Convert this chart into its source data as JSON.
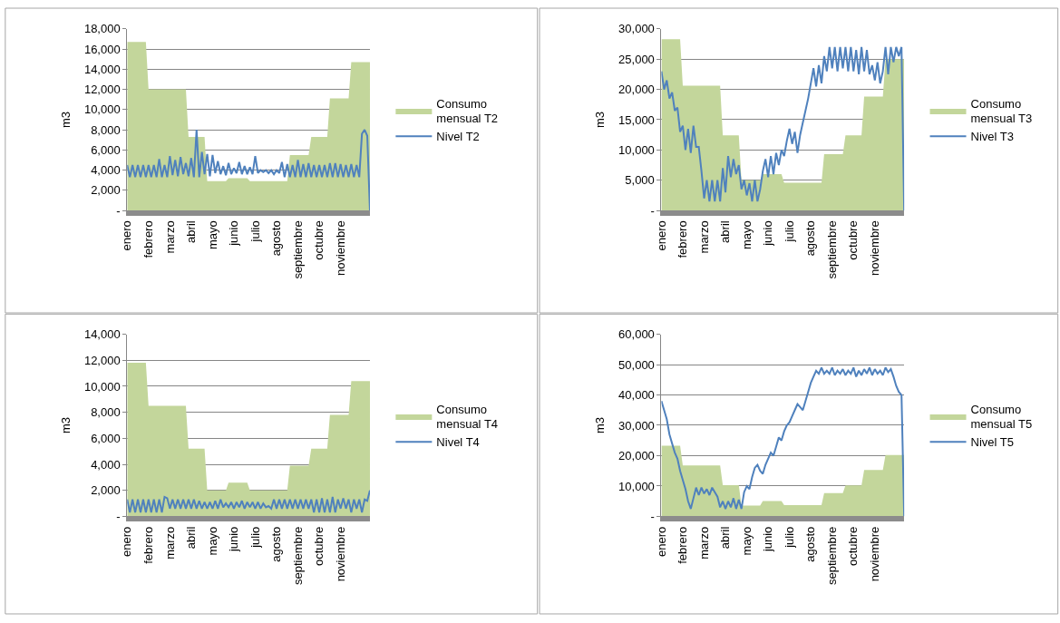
{
  "chart_data": [
    {
      "type": "area",
      "ylabel": "m3",
      "ylim": [
        0,
        18000
      ],
      "yticks": [
        {
          "value": 0,
          "label": "-"
        },
        {
          "value": 2000,
          "label": "2,000"
        },
        {
          "value": 4000,
          "label": "4,000"
        },
        {
          "value": 6000,
          "label": "6,000"
        },
        {
          "value": 8000,
          "label": "8,000"
        },
        {
          "value": 10000,
          "label": "10,000"
        },
        {
          "value": 12000,
          "label": "12,000"
        },
        {
          "value": 14000,
          "label": "14,000"
        },
        {
          "value": 16000,
          "label": "16,000"
        },
        {
          "value": 18000,
          "label": "18,000"
        }
      ],
      "grid": "y",
      "legend": "right",
      "categories": [
        "enero",
        null,
        null,
        null,
        null,
        null,
        null,
        null,
        "febrero",
        null,
        null,
        null,
        null,
        null,
        null,
        null,
        "marzo",
        null,
        null,
        null,
        null,
        null,
        null,
        null,
        "abril",
        null,
        null,
        null,
        null,
        null,
        null,
        null,
        "mayo",
        null,
        null,
        null,
        null,
        null,
        null,
        null,
        "junio",
        null,
        null,
        null,
        null,
        null,
        null,
        null,
        "julio",
        null,
        null,
        null,
        null,
        null,
        null,
        null,
        "agosto",
        null,
        null,
        null,
        null,
        null,
        null,
        null,
        "septiembre",
        null,
        null,
        null,
        null,
        null,
        null,
        null,
        "octubre",
        null,
        null,
        null,
        null,
        null,
        null,
        null,
        "noviembre",
        null,
        null,
        null,
        null,
        null,
        null,
        null,
        null,
        null,
        null,
        null
      ],
      "series": [
        {
          "name": "Consumo mensual T2",
          "color": "#c3d69b",
          "values": [
            16700,
            16700,
            16700,
            16700,
            16700,
            16700,
            16700,
            16700,
            12000,
            12000,
            12000,
            12000,
            12000,
            12000,
            12000,
            12000,
            12000,
            12000,
            12000,
            12000,
            12000,
            12000,
            12000,
            7300,
            7300,
            7300,
            7300,
            7300,
            7300,
            7300,
            2900,
            2900,
            2900,
            2900,
            2900,
            2900,
            2900,
            2900,
            3200,
            3200,
            3200,
            3200,
            3200,
            3200,
            3200,
            3200,
            2900,
            2900,
            2900,
            2900,
            2900,
            2900,
            2900,
            2900,
            2900,
            2900,
            2900,
            2900,
            2900,
            2900,
            2900,
            5500,
            5500,
            5500,
            5500,
            5500,
            5500,
            5500,
            5500,
            7300,
            7300,
            7300,
            7300,
            7300,
            7300,
            7300,
            11100,
            11100,
            11100,
            11100,
            11100,
            11100,
            11100,
            11100,
            14700,
            14700,
            14700,
            14700,
            14700,
            14700,
            14700,
            14700
          ]
        },
        {
          "name": "Nivel T2",
          "type": "line",
          "color": "#4f81bd",
          "values": [
            4500,
            3300,
            4500,
            3300,
            4500,
            3300,
            4500,
            3300,
            4500,
            3300,
            4500,
            3300,
            5100,
            3300,
            4500,
            3300,
            5400,
            3500,
            5000,
            3400,
            5300,
            3600,
            4700,
            3400,
            5200,
            3300,
            8000,
            3300,
            5800,
            3600,
            5600,
            3400,
            5500,
            3700,
            4900,
            3600,
            4400,
            3500,
            4700,
            3600,
            4200,
            3700,
            4800,
            3600,
            4400,
            3600,
            4300,
            3600,
            5400,
            3700,
            4000,
            3800,
            4000,
            3700,
            4000,
            3600,
            4000,
            3700,
            4800,
            3300,
            4600,
            3300,
            4500,
            3300,
            5000,
            3300,
            4600,
            3300,
            4700,
            3300,
            4500,
            3300,
            4500,
            3300,
            4500,
            3300,
            4700,
            3300,
            4700,
            3300,
            4600,
            3300,
            4500,
            3300,
            4600,
            3300,
            4500,
            3300,
            7600,
            8000,
            7400,
            0
          ]
        }
      ]
    },
    {
      "type": "area",
      "ylabel": "m3",
      "ylim": [
        0,
        30000
      ],
      "yticks": [
        {
          "value": 0,
          "label": "-"
        },
        {
          "value": 5000,
          "label": "5,000"
        },
        {
          "value": 10000,
          "label": "10,000"
        },
        {
          "value": 15000,
          "label": "15,000"
        },
        {
          "value": 20000,
          "label": "20,000"
        },
        {
          "value": 25000,
          "label": "25,000"
        },
        {
          "value": 30000,
          "label": "30,000"
        }
      ],
      "grid": "y",
      "legend": "right",
      "categories": [
        "enero",
        null,
        null,
        null,
        null,
        null,
        null,
        null,
        "febrero",
        null,
        null,
        null,
        null,
        null,
        null,
        null,
        "marzo",
        null,
        null,
        null,
        null,
        null,
        null,
        null,
        "abril",
        null,
        null,
        null,
        null,
        null,
        null,
        null,
        "mayo",
        null,
        null,
        null,
        null,
        null,
        null,
        null,
        "junio",
        null,
        null,
        null,
        null,
        null,
        null,
        null,
        "julio",
        null,
        null,
        null,
        null,
        null,
        null,
        null,
        "agosto",
        null,
        null,
        null,
        null,
        null,
        null,
        null,
        "septiembre",
        null,
        null,
        null,
        null,
        null,
        null,
        null,
        "octubre",
        null,
        null,
        null,
        null,
        null,
        null,
        null,
        "noviembre",
        null,
        null,
        null,
        null,
        null,
        null,
        null,
        null,
        null,
        null,
        null
      ],
      "series": [
        {
          "name": "Consumo mensual T3",
          "color": "#c3d69b",
          "values": [
            28300,
            28300,
            28300,
            28300,
            28300,
            28300,
            28300,
            28300,
            20600,
            20600,
            20600,
            20600,
            20600,
            20600,
            20600,
            20600,
            20600,
            20600,
            20600,
            20600,
            20600,
            20600,
            20600,
            12400,
            12400,
            12400,
            12400,
            12400,
            12400,
            12400,
            5000,
            5000,
            5000,
            5000,
            5000,
            5000,
            5000,
            5000,
            6000,
            6000,
            6000,
            6000,
            6000,
            6000,
            6000,
            6000,
            4600,
            4600,
            4600,
            4600,
            4600,
            4600,
            4600,
            4600,
            4600,
            4600,
            4600,
            4600,
            4600,
            4600,
            4600,
            9300,
            9300,
            9300,
            9300,
            9300,
            9300,
            9300,
            9300,
            12400,
            12400,
            12400,
            12400,
            12400,
            12400,
            12400,
            18800,
            18800,
            18800,
            18800,
            18800,
            18800,
            18800,
            18800,
            25000,
            25000,
            25000,
            25000,
            25000,
            25000,
            25000,
            25000
          ]
        },
        {
          "name": "Nivel T3",
          "type": "line",
          "color": "#4f81bd",
          "values": [
            23000,
            20000,
            21500,
            18500,
            19500,
            16500,
            17000,
            13000,
            14000,
            10000,
            13500,
            9500,
            14000,
            10500,
            10500,
            6500,
            2000,
            5000,
            1500,
            5000,
            1500,
            5000,
            1500,
            7000,
            3000,
            9000,
            5500,
            8500,
            6000,
            7500,
            3500,
            5000,
            2500,
            4500,
            1500,
            5000,
            1500,
            3500,
            6500,
            8500,
            5500,
            9000,
            6000,
            9500,
            7500,
            10000,
            9000,
            11500,
            13500,
            11000,
            13000,
            9500,
            12500,
            14500,
            16500,
            18500,
            21000,
            23500,
            20500,
            24000,
            21000,
            25500,
            23000,
            27000,
            23500,
            27000,
            23000,
            27000,
            23500,
            27000,
            23000,
            27000,
            23000,
            26500,
            22500,
            27000,
            23000,
            26500,
            22500,
            24000,
            21500,
            24500,
            21000,
            23000,
            27000,
            22500,
            27000,
            24500,
            27000,
            25500,
            27000,
            0
          ]
        }
      ]
    },
    {
      "type": "area",
      "ylabel": "m3",
      "ylim": [
        0,
        14000
      ],
      "yticks": [
        {
          "value": 0,
          "label": "-"
        },
        {
          "value": 2000,
          "label": "2,000"
        },
        {
          "value": 4000,
          "label": "4,000"
        },
        {
          "value": 6000,
          "label": "6,000"
        },
        {
          "value": 8000,
          "label": "8,000"
        },
        {
          "value": 10000,
          "label": "10,000"
        },
        {
          "value": 12000,
          "label": "12,000"
        },
        {
          "value": 14000,
          "label": "14,000"
        }
      ],
      "grid": "y",
      "legend": "right",
      "categories": [
        "enero",
        null,
        null,
        null,
        null,
        null,
        null,
        null,
        "febrero",
        null,
        null,
        null,
        null,
        null,
        null,
        null,
        "marzo",
        null,
        null,
        null,
        null,
        null,
        null,
        null,
        "abril",
        null,
        null,
        null,
        null,
        null,
        null,
        null,
        "mayo",
        null,
        null,
        null,
        null,
        null,
        null,
        null,
        "junio",
        null,
        null,
        null,
        null,
        null,
        null,
        null,
        "julio",
        null,
        null,
        null,
        null,
        null,
        null,
        null,
        "agosto",
        null,
        null,
        null,
        null,
        null,
        null,
        null,
        "septiembre",
        null,
        null,
        null,
        null,
        null,
        null,
        null,
        "octubre",
        null,
        null,
        null,
        null,
        null,
        null,
        null,
        "noviembre",
        null,
        null,
        null,
        null,
        null,
        null,
        null,
        null,
        null,
        null,
        null
      ],
      "series": [
        {
          "name": "Consumo mensual T4",
          "color": "#c3d69b",
          "values": [
            11800,
            11800,
            11800,
            11800,
            11800,
            11800,
            11800,
            11800,
            8500,
            8500,
            8500,
            8500,
            8500,
            8500,
            8500,
            8500,
            8500,
            8500,
            8500,
            8500,
            8500,
            8500,
            8500,
            5200,
            5200,
            5200,
            5200,
            5200,
            5200,
            5200,
            2000,
            2000,
            2000,
            2000,
            2000,
            2000,
            2000,
            2000,
            2600,
            2600,
            2600,
            2600,
            2600,
            2600,
            2600,
            2600,
            2000,
            2000,
            2000,
            2000,
            2000,
            2000,
            2000,
            2000,
            2000,
            2000,
            2000,
            2000,
            2000,
            2000,
            2000,
            3900,
            3900,
            3900,
            3900,
            3900,
            3900,
            3900,
            3900,
            5200,
            5200,
            5200,
            5200,
            5200,
            5200,
            5200,
            7800,
            7800,
            7800,
            7800,
            7800,
            7800,
            7800,
            7800,
            10400,
            10400,
            10400,
            10400,
            10400,
            10400,
            10400,
            10400
          ]
        },
        {
          "name": "Nivel T4",
          "type": "line",
          "color": "#4f81bd",
          "values": [
            1300,
            300,
            1300,
            300,
            1300,
            300,
            1300,
            300,
            1300,
            300,
            1300,
            300,
            1300,
            300,
            1500,
            1400,
            600,
            1300,
            600,
            1300,
            600,
            1300,
            600,
            1300,
            600,
            1300,
            600,
            1200,
            600,
            1100,
            600,
            1100,
            600,
            1200,
            600,
            1300,
            700,
            1000,
            700,
            1100,
            600,
            1100,
            700,
            1200,
            600,
            1100,
            700,
            1100,
            600,
            1100,
            600,
            1000,
            700,
            800,
            600,
            1300,
            600,
            1300,
            600,
            1300,
            600,
            1300,
            600,
            1300,
            600,
            1300,
            600,
            1300,
            600,
            1300,
            300,
            1300,
            300,
            1400,
            300,
            1300,
            300,
            1500,
            300,
            1300,
            600,
            1400,
            600,
            1300,
            300,
            1300,
            600,
            1300,
            300,
            1300,
            1200,
            2000
          ]
        }
      ]
    },
    {
      "type": "area",
      "ylabel": "m3",
      "ylim": [
        0,
        60000
      ],
      "yticks": [
        {
          "value": 0,
          "label": "-"
        },
        {
          "value": 10000,
          "label": "10,000"
        },
        {
          "value": 20000,
          "label": "20,000"
        },
        {
          "value": 30000,
          "label": "30,000"
        },
        {
          "value": 40000,
          "label": "40,000"
        },
        {
          "value": 50000,
          "label": "50,000"
        },
        {
          "value": 60000,
          "label": "60,000"
        }
      ],
      "grid": "y",
      "legend": "right",
      "categories": [
        "enero",
        null,
        null,
        null,
        null,
        null,
        null,
        null,
        "febrero",
        null,
        null,
        null,
        null,
        null,
        null,
        null,
        "marzo",
        null,
        null,
        null,
        null,
        null,
        null,
        null,
        "abril",
        null,
        null,
        null,
        null,
        null,
        null,
        null,
        "mayo",
        null,
        null,
        null,
        null,
        null,
        null,
        null,
        "junio",
        null,
        null,
        null,
        null,
        null,
        null,
        null,
        "julio",
        null,
        null,
        null,
        null,
        null,
        null,
        null,
        "agosto",
        null,
        null,
        null,
        null,
        null,
        null,
        null,
        "septiembre",
        null,
        null,
        null,
        null,
        null,
        null,
        null,
        "octubre",
        null,
        null,
        null,
        null,
        null,
        null,
        null,
        "noviembre",
        null,
        null,
        null,
        null,
        null,
        null,
        null,
        null,
        null,
        null,
        null
      ],
      "series": [
        {
          "name": "Consumo mensual T5",
          "color": "#c3d69b",
          "values": [
            23300,
            23300,
            23300,
            23300,
            23300,
            23300,
            23300,
            23300,
            16800,
            16800,
            16800,
            16800,
            16800,
            16800,
            16800,
            16800,
            16800,
            16800,
            16800,
            16800,
            16800,
            16800,
            16800,
            10300,
            10300,
            10300,
            10300,
            10300,
            10300,
            10300,
            3600,
            3600,
            3600,
            3600,
            3600,
            3600,
            3600,
            3600,
            5100,
            5100,
            5100,
            5100,
            5100,
            5100,
            5100,
            5100,
            3700,
            3700,
            3700,
            3700,
            3700,
            3700,
            3700,
            3700,
            3700,
            3700,
            3700,
            3700,
            3700,
            3700,
            3700,
            7700,
            7700,
            7700,
            7700,
            7700,
            7700,
            7700,
            7700,
            10200,
            10200,
            10200,
            10200,
            10200,
            10200,
            10200,
            15300,
            15300,
            15300,
            15300,
            15300,
            15300,
            15300,
            15300,
            20200,
            20200,
            20200,
            20200,
            20200,
            20200,
            20200,
            20200
          ]
        },
        {
          "name": "Nivel T5",
          "type": "line",
          "color": "#4f81bd",
          "values": [
            38000,
            35000,
            32000,
            27000,
            24000,
            21000,
            19000,
            15000,
            12000,
            9000,
            5000,
            2500,
            6000,
            9500,
            7000,
            9500,
            7500,
            9000,
            7000,
            9500,
            8000,
            6500,
            3000,
            5000,
            2500,
            5000,
            3000,
            6000,
            2500,
            5500,
            2500,
            8000,
            10000,
            9000,
            13000,
            16000,
            17000,
            15000,
            14000,
            17000,
            19000,
            21000,
            20000,
            23000,
            26000,
            25000,
            28000,
            30000,
            31000,
            33000,
            35000,
            37000,
            36000,
            35000,
            38000,
            41000,
            44000,
            46000,
            48000,
            47000,
            49000,
            47000,
            48000,
            47000,
            49000,
            46500,
            48000,
            47000,
            48500,
            46500,
            48000,
            47000,
            49000,
            46000,
            48000,
            46500,
            48500,
            47000,
            49000,
            46500,
            48500,
            47000,
            48000,
            46500,
            49000,
            47500,
            48500,
            46000,
            43000,
            41000,
            40000,
            0
          ]
        }
      ]
    }
  ]
}
